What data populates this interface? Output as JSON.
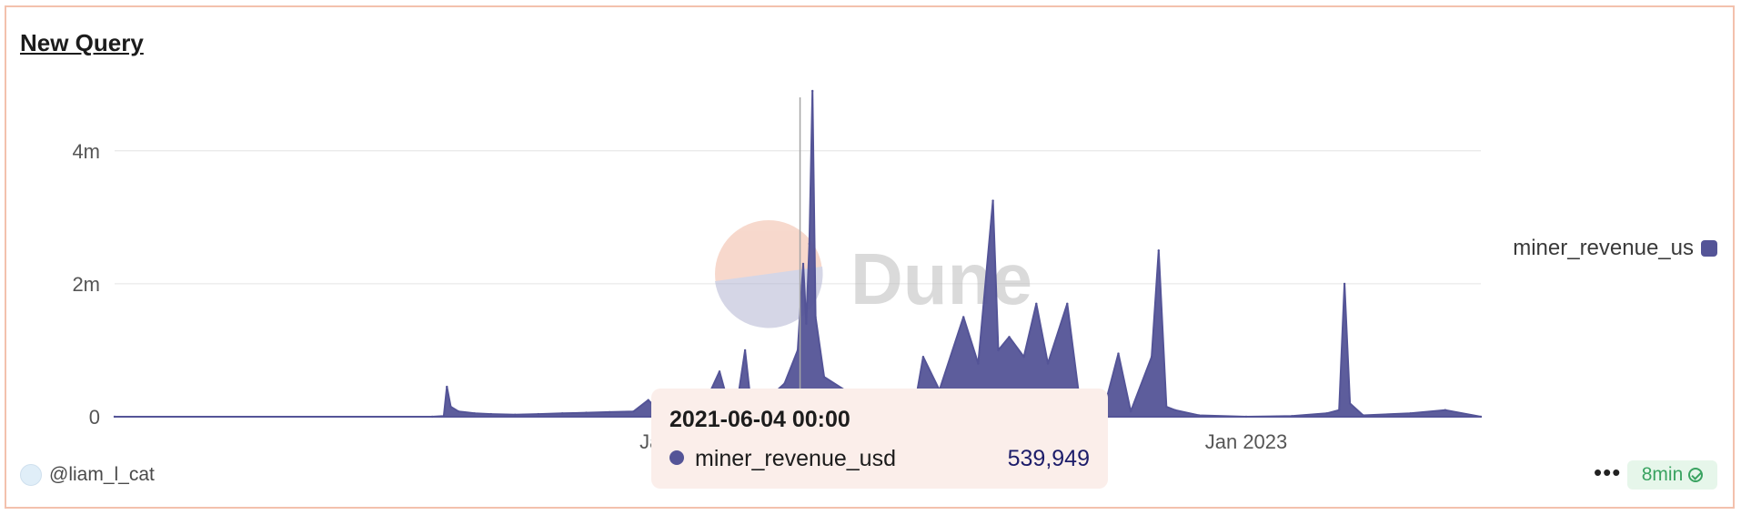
{
  "card": {
    "title": "New Query",
    "author": "@liam_l_cat",
    "more_label": "•••",
    "refresh_badge": "8min"
  },
  "watermark": {
    "text": "Dune"
  },
  "tooltip": {
    "date": "2021-06-04 00:00",
    "series": "miner_revenue_usd",
    "value": "539,949"
  },
  "legend": {
    "label": "miner_revenue_us",
    "color": "#545497"
  },
  "colors": {
    "series": "#545497",
    "grid": "#e4e4e4",
    "axis_text": "#555555",
    "border": "#f3c1ad"
  },
  "chart_data": {
    "type": "area",
    "xlabel": "",
    "ylabel": "",
    "xlim": [
      "2019-01-01",
      "2023-10-31"
    ],
    "ylim": [
      0,
      4900000
    ],
    "yticks": [
      0,
      2000000,
      4000000
    ],
    "ytick_labels": [
      "0",
      "2m",
      "4m"
    ],
    "xticks": [
      "2021-01-01",
      "2023-01-01"
    ],
    "xtick_labels": [
      "Jan 2021",
      "Jan 2023"
    ],
    "grid": true,
    "legend_position": "right",
    "series": [
      {
        "name": "miner_revenue_us",
        "points": [
          [
            "2019-01-01",
            0
          ],
          [
            "2020-02-15",
            0
          ],
          [
            "2020-03-01",
            10000
          ],
          [
            "2020-03-05",
            450000
          ],
          [
            "2020-03-10",
            150000
          ],
          [
            "2020-03-20",
            80000
          ],
          [
            "2020-04-10",
            50000
          ],
          [
            "2020-05-01",
            40000
          ],
          [
            "2020-06-01",
            30000
          ],
          [
            "2020-07-01",
            40000
          ],
          [
            "2020-08-01",
            50000
          ],
          [
            "2020-09-01",
            60000
          ],
          [
            "2020-10-01",
            70000
          ],
          [
            "2020-11-01",
            80000
          ],
          [
            "2020-11-20",
            250000
          ],
          [
            "2020-12-01",
            120000
          ],
          [
            "2021-01-01",
            130000
          ],
          [
            "2021-02-01",
            200000
          ],
          [
            "2021-02-20",
            680000
          ],
          [
            "2021-03-01",
            300000
          ],
          [
            "2021-03-15",
            220000
          ],
          [
            "2021-03-25",
            1000000
          ],
          [
            "2021-04-01",
            250000
          ],
          [
            "2021-05-01",
            350000
          ],
          [
            "2021-05-15",
            500000
          ],
          [
            "2021-06-01",
            1000000
          ],
          [
            "2021-06-08",
            2300000
          ],
          [
            "2021-06-12",
            1400000
          ],
          [
            "2021-06-16",
            2600000
          ],
          [
            "2021-06-20",
            4900000
          ],
          [
            "2021-06-24",
            1500000
          ],
          [
            "2021-07-05",
            600000
          ],
          [
            "2021-08-01",
            400000
          ],
          [
            "2021-09-01",
            200000
          ],
          [
            "2021-10-01",
            250000
          ],
          [
            "2021-11-01",
            300000
          ],
          [
            "2021-11-10",
            900000
          ],
          [
            "2021-12-01",
            400000
          ],
          [
            "2022-01-01",
            1500000
          ],
          [
            "2022-01-20",
            800000
          ],
          [
            "2022-02-08",
            3250000
          ],
          [
            "2022-02-15",
            1000000
          ],
          [
            "2022-03-01",
            1200000
          ],
          [
            "2022-03-20",
            900000
          ],
          [
            "2022-04-05",
            1700000
          ],
          [
            "2022-04-20",
            800000
          ],
          [
            "2022-05-15",
            1700000
          ],
          [
            "2022-06-01",
            150000
          ],
          [
            "2022-07-01",
            100000
          ],
          [
            "2022-07-20",
            950000
          ],
          [
            "2022-08-05",
            80000
          ],
          [
            "2022-09-01",
            900000
          ],
          [
            "2022-09-10",
            2500000
          ],
          [
            "2022-09-20",
            150000
          ],
          [
            "2022-10-01",
            100000
          ],
          [
            "2022-11-01",
            20000
          ],
          [
            "2023-01-01",
            0
          ],
          [
            "2023-03-01",
            10000
          ],
          [
            "2023-04-15",
            50000
          ],
          [
            "2023-05-01",
            100000
          ],
          [
            "2023-05-08",
            2000000
          ],
          [
            "2023-05-15",
            200000
          ],
          [
            "2023-06-01",
            20000
          ],
          [
            "2023-08-01",
            50000
          ],
          [
            "2023-09-15",
            100000
          ],
          [
            "2023-10-31",
            0
          ]
        ]
      }
    ],
    "hover": {
      "x": "2021-06-04",
      "y": 539949
    }
  }
}
